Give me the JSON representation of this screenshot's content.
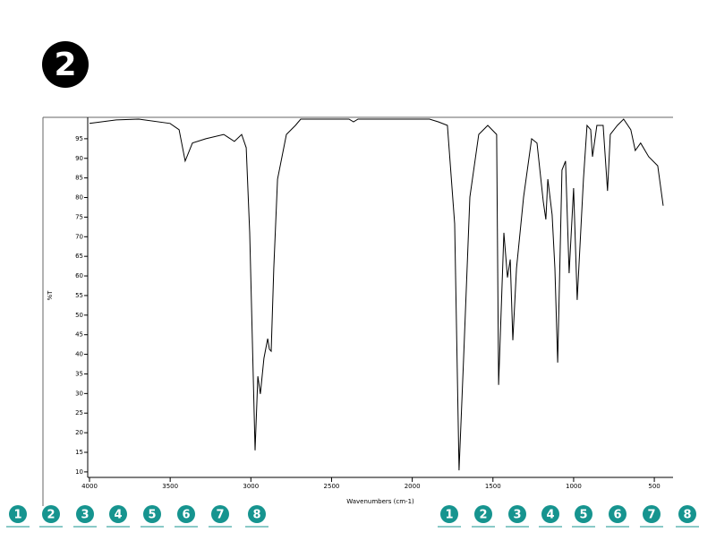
{
  "question_number": "2",
  "chart_data": {
    "type": "line",
    "y_label": "%T",
    "x_label": "Wavenumbers (cm-1)",
    "x": [
      4000,
      3834,
      3695,
      3501,
      3445,
      3407,
      3362,
      3279,
      3168,
      3102,
      3057,
      3029,
      3007,
      2974,
      2957,
      2941,
      2919,
      2896,
      2885,
      2874,
      2858,
      2835,
      2780,
      2724,
      2691,
      2392,
      2364,
      2336,
      1893,
      1837,
      1782,
      1737,
      1710,
      1682,
      1643,
      1588,
      1532,
      1477,
      1465,
      1432,
      1410,
      1393,
      1377,
      1354,
      1310,
      1260,
      1227,
      1188,
      1172,
      1160,
      1133,
      1116,
      1099,
      1072,
      1050,
      1028,
      1000,
      978,
      939,
      917,
      894,
      883,
      856,
      817,
      790,
      773,
      729,
      690,
      646,
      618,
      585,
      535,
      479,
      445
    ],
    "values": [
      98.9,
      99.8,
      100,
      98.9,
      97.3,
      89.3,
      93.9,
      95,
      96.1,
      94.3,
      96.1,
      92.7,
      71,
      15.5,
      34.4,
      29.9,
      39,
      44,
      41.3,
      40.8,
      61.9,
      84.7,
      96.1,
      98.4,
      100,
      100,
      99.3,
      100,
      100,
      99.3,
      98.4,
      73.3,
      10.4,
      39,
      80.1,
      96.1,
      98.4,
      96.1,
      32.2,
      71,
      59.6,
      64.2,
      43.6,
      61.9,
      80.1,
      95,
      93.9,
      79,
      74.4,
      84.7,
      75.6,
      61.9,
      37.9,
      87,
      89.3,
      60.7,
      82.4,
      53.9,
      84.7,
      98.4,
      97.3,
      90.4,
      98.4,
      98.4,
      81.7,
      96.1,
      98.4,
      100,
      97.3,
      92,
      93.9,
      90.4,
      88.1,
      77.9
    ],
    "color": "#000000",
    "xlim": [
      4000,
      384
    ],
    "xticks": [
      4000,
      3500,
      3000,
      2500,
      2000,
      1500,
      1000,
      500
    ],
    "ylim": [
      8.6,
      100
    ],
    "yticks": [
      10,
      15,
      20,
      25,
      30,
      35,
      40,
      45,
      50,
      55,
      60,
      65,
      70,
      75,
      80,
      85,
      90,
      95
    ]
  },
  "choices_left": [
    "1",
    "2",
    "3",
    "4",
    "5",
    "6",
    "7",
    "8"
  ],
  "choices_right": [
    "1",
    "2",
    "3",
    "4",
    "5",
    "6",
    "7",
    "8"
  ]
}
